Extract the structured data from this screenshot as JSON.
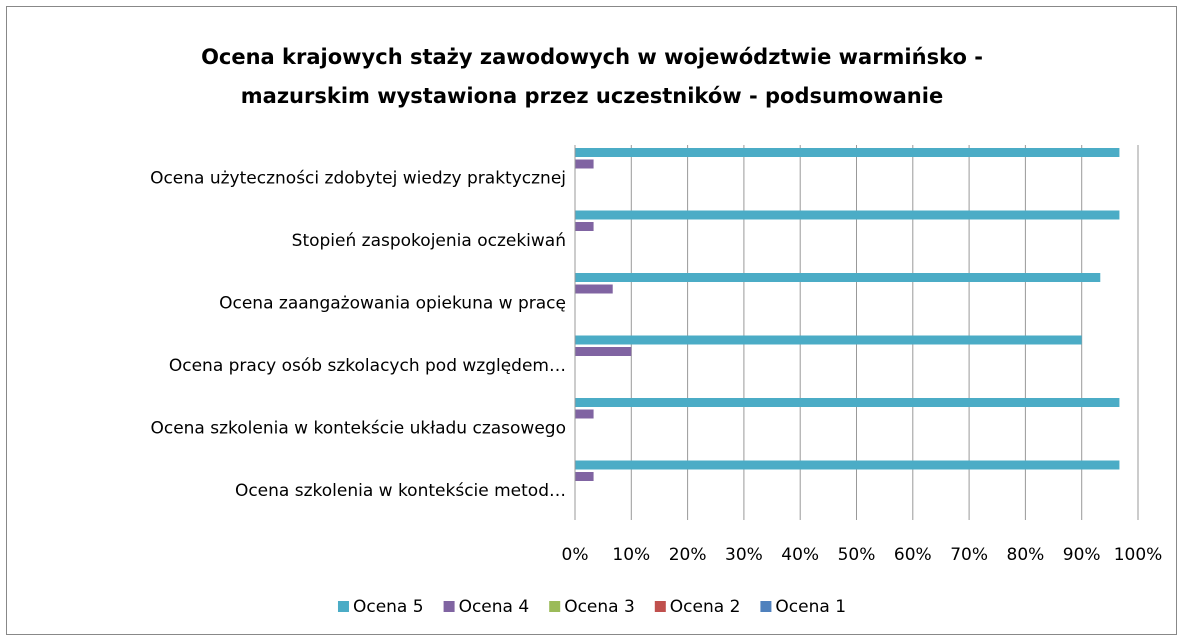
{
  "chart_data": {
    "type": "bar",
    "orientation": "horizontal",
    "title": [
      "Ocena krajowych staży zawodowych w województwie warmińsko -",
      "mazurskim wystawiona przez uczestników - podsumowanie"
    ],
    "categories": [
      "Ocena użyteczności zdobytej wiedzy praktycznej",
      "Stopień zaspokojenia oczekiwań",
      "Ocena zaangażowania opiekuna w pracę",
      "Ocena pracy osób szkolacych pod względem…",
      "Ocena szkolenia w kontekście układu czasowego",
      "Ocena szkolenia w kontekście metod…"
    ],
    "series": [
      {
        "name": "Ocena 5",
        "color": "#4bacc6",
        "values": [
          96.7,
          96.7,
          93.3,
          90,
          96.7,
          96.7
        ]
      },
      {
        "name": "Ocena 4",
        "color": "#8064a2",
        "values": [
          3.3,
          3.3,
          6.7,
          10,
          3.3,
          3.3
        ]
      },
      {
        "name": "Ocena 3",
        "color": "#9bbb59",
        "values": [
          0,
          0,
          0,
          0,
          0,
          0
        ]
      },
      {
        "name": "Ocena 2",
        "color": "#c0504d",
        "values": [
          0,
          0,
          0,
          0,
          0,
          0
        ]
      },
      {
        "name": "Ocena 1",
        "color": "#4f81bd",
        "values": [
          0,
          0,
          0,
          0,
          0,
          0
        ]
      }
    ],
    "xlim": [
      0,
      100
    ],
    "xticks": [
      {
        "value": 0,
        "label": "0%"
      },
      {
        "value": 10,
        "label": "10%"
      },
      {
        "value": 20,
        "label": "20%"
      },
      {
        "value": 30,
        "label": "30%"
      },
      {
        "value": 40,
        "label": "40%"
      },
      {
        "value": 50,
        "label": "50%"
      },
      {
        "value": 60,
        "label": "60%"
      },
      {
        "value": 70,
        "label": "70%"
      },
      {
        "value": 80,
        "label": "80%"
      },
      {
        "value": 90,
        "label": "90%"
      },
      {
        "value": 100,
        "label": "100%"
      }
    ],
    "grid": true,
    "legend": "bottom"
  }
}
